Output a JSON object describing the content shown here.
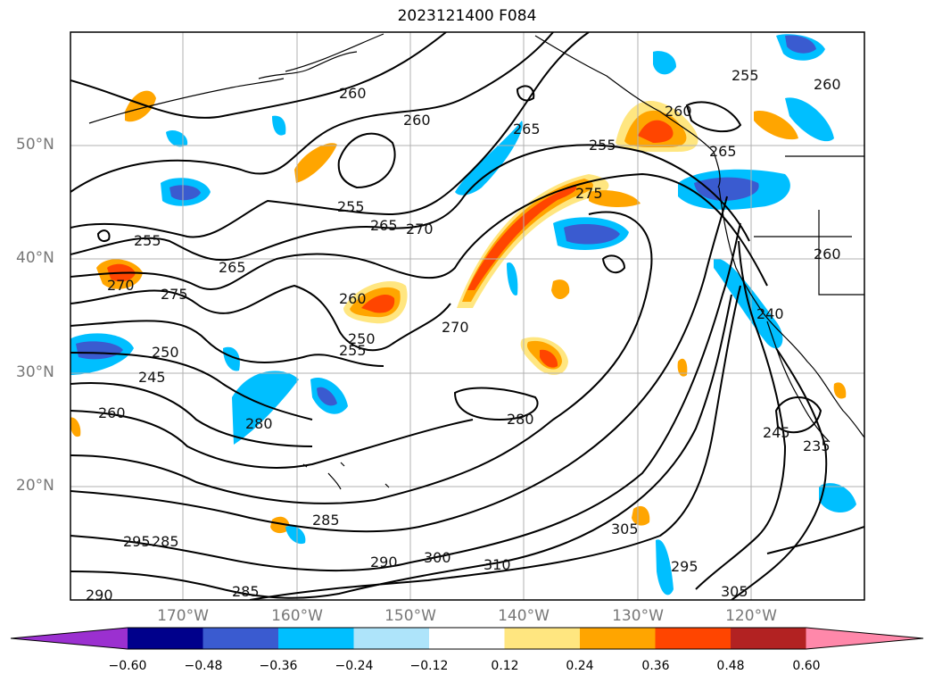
{
  "title": "2023121400 F084",
  "lat_labels": [
    "50°N",
    "40°N",
    "30°N",
    "20°N"
  ],
  "lon_labels": [
    "170°W",
    "160°W",
    "150°W",
    "140°W",
    "130°W",
    "120°W"
  ],
  "colorbar": {
    "ticks": [
      "−0.60",
      "−0.48",
      "−0.36",
      "−0.24",
      "−0.12",
      "0.12",
      "0.24",
      "0.36",
      "0.48",
      "0.60"
    ],
    "colors": [
      "#9b30d0",
      "#00008b",
      "#3a5bd0",
      "#00bfff",
      "#aee4fa",
      "#ffffff",
      "#ffe680",
      "#ffa500",
      "#ff4500",
      "#b22222",
      "#ff88aa"
    ]
  },
  "contour_labels": [
    "260",
    "255",
    "265",
    "270",
    "275",
    "280",
    "285",
    "290",
    "295",
    "300",
    "305",
    "310",
    "250",
    "245",
    "240",
    "235"
  ]
}
